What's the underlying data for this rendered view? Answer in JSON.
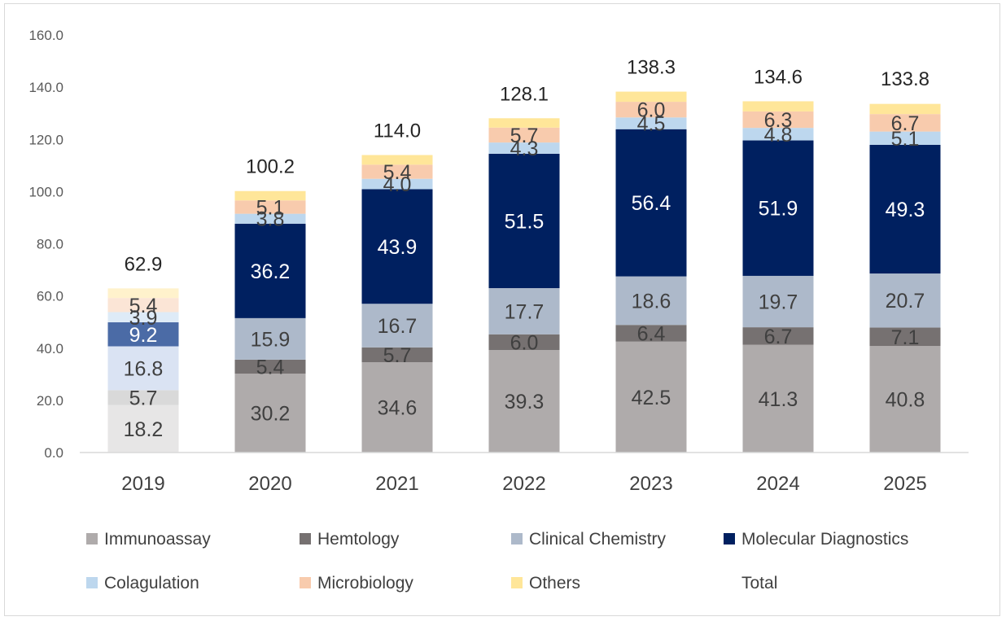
{
  "chart_data": {
    "type": "bar",
    "stacked": true,
    "title": "",
    "xlabel": "",
    "ylabel": "",
    "ylim": [
      0,
      160
    ],
    "yticks": [
      "0.0",
      "20.0",
      "40.0",
      "60.0",
      "80.0",
      "100.0",
      "120.0",
      "140.0",
      "160.0"
    ],
    "grid": false,
    "legend_position": "bottom",
    "categories": [
      "2019",
      "2020",
      "2021",
      "2022",
      "2023",
      "2024",
      "2025"
    ],
    "series": [
      {
        "name": "Immunoassay",
        "color": "#afabab",
        "labelColor": "#404040",
        "values": [
          18.2,
          30.2,
          34.6,
          39.3,
          42.5,
          41.3,
          40.8
        ],
        "labels": [
          "18.2",
          "30.2",
          "34.6",
          "39.3",
          "42.5",
          "41.3",
          "40.8"
        ]
      },
      {
        "name": "Hemtology",
        "color": "#767171",
        "labelColor": "#404040",
        "values": [
          5.7,
          5.4,
          5.7,
          6.0,
          6.4,
          6.7,
          7.1
        ],
        "labels": [
          "5.7",
          "5.4",
          "5.7",
          "6.0",
          "6.4",
          "6.7",
          "7.1"
        ]
      },
      {
        "name": "Clinical Chemistry",
        "color": "#adb9ca",
        "labelColor": "#404040",
        "values": [
          16.8,
          15.9,
          16.7,
          17.7,
          18.6,
          19.7,
          20.7
        ],
        "labels": [
          "16.8",
          "15.9",
          "16.7",
          "17.7",
          "18.6",
          "19.7",
          "20.7"
        ]
      },
      {
        "name": "Molecular Diagnostics",
        "color": "#002060",
        "labelColor": "#ffffff",
        "values": [
          9.2,
          36.2,
          43.9,
          51.5,
          56.4,
          51.9,
          49.3
        ],
        "labels": [
          "9.2",
          "36.2",
          "43.9",
          "51.5",
          "56.4",
          "51.9",
          "49.3"
        ]
      },
      {
        "name": "Colagulation",
        "color": "#bdd7ee",
        "labelColor": "#404040",
        "values": [
          3.9,
          3.8,
          4.0,
          4.3,
          4.5,
          4.8,
          5.1
        ],
        "labels": [
          "3.9",
          "3.8",
          "4.0",
          "4.3",
          "4.5",
          "4.8",
          "5.1"
        ]
      },
      {
        "name": "Microbiology",
        "color": "#f8cbad",
        "labelColor": "#404040",
        "values": [
          5.4,
          5.1,
          5.4,
          5.7,
          6.0,
          6.3,
          6.7
        ],
        "labels": [
          "5.4",
          "5.1",
          "5.4",
          "5.7",
          "6.0",
          "6.3",
          "6.7"
        ]
      },
      {
        "name": "Others",
        "color": "#ffe699",
        "labelColor": "#404040",
        "values": [
          3.7,
          3.6,
          3.7,
          3.6,
          3.9,
          3.9,
          3.9
        ],
        "labels": []
      }
    ],
    "first_category_colors": [
      "#e7e6e6",
      "#d9d9d9",
      "#dae3f3",
      "#4b6ba6",
      "#deebf7",
      "#fbe5d6",
      "#fff2cc"
    ],
    "first_category_label_colors": [
      "#404040",
      "#404040",
      "#404040",
      "#ffffff",
      "#404040",
      "#404040",
      "#404040"
    ],
    "totals": {
      "name": "Total",
      "values": [
        62.9,
        100.2,
        114.0,
        128.1,
        138.3,
        134.6,
        133.8
      ],
      "labels": [
        "62.9",
        "100.2",
        "114.0",
        "128.1",
        "138.3",
        "134.6",
        "133.8"
      ]
    },
    "legend": [
      "Immunoassay",
      "Hemtology",
      "Clinical Chemistry",
      "Molecular Diagnostics",
      "Colagulation",
      "Microbiology",
      "Others",
      "Total"
    ]
  }
}
